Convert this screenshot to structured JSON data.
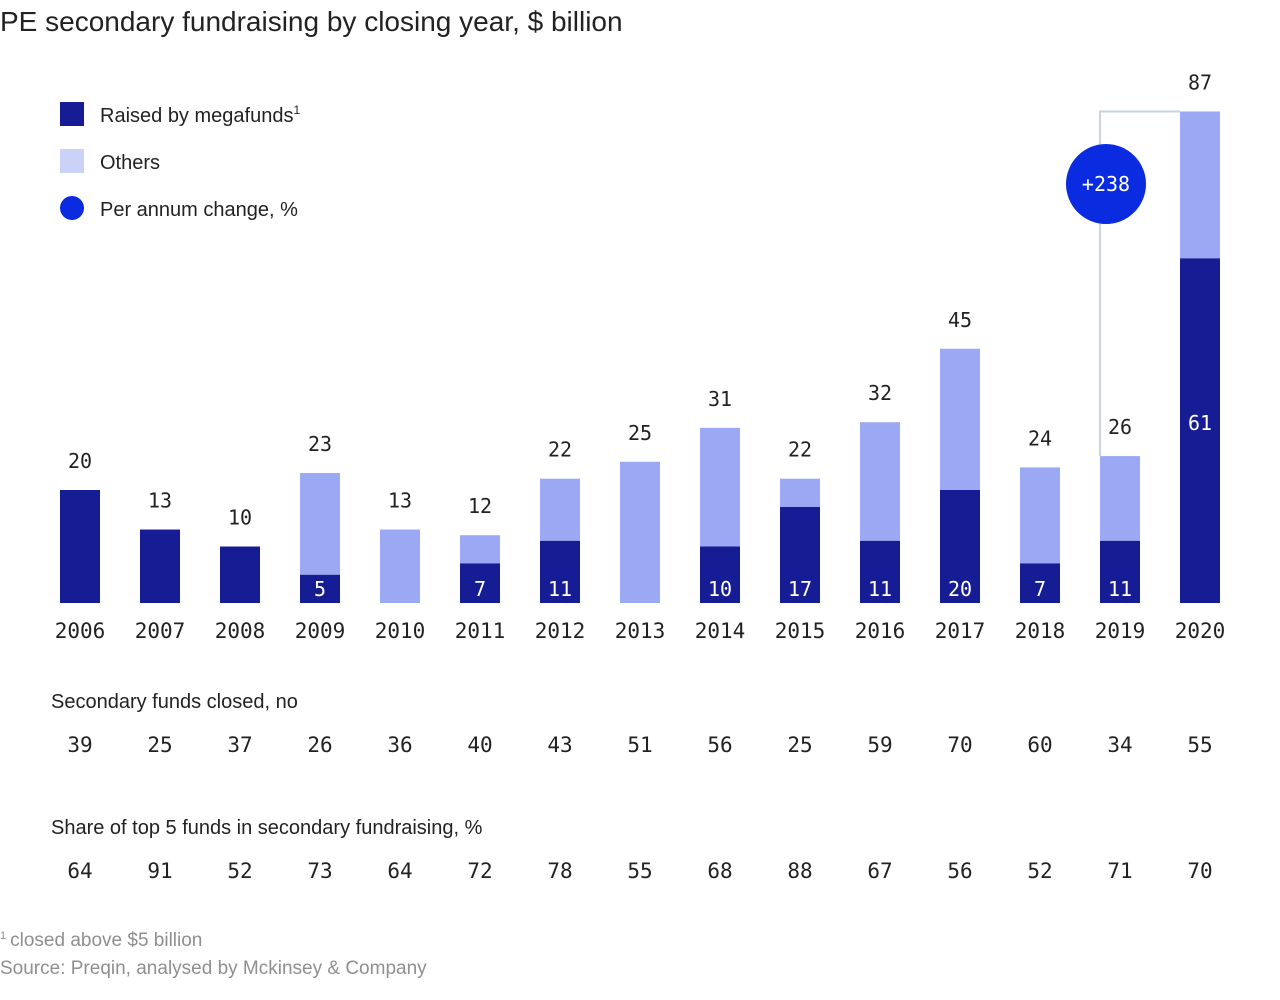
{
  "title": "PE secondary fundraising by closing year, $ billion",
  "legend": {
    "megafunds": "Raised by megafunds",
    "megafunds_sup": "1",
    "others": "Others",
    "change": "Per annum change, %"
  },
  "colors": {
    "megafunds": "#151c94",
    "others": "#9ba8f3",
    "others_legend": "#cbd2f8",
    "change": "#0a2be0",
    "bracket": "#c7d3e6",
    "text": "#222222",
    "footnote": "#8f8f8f"
  },
  "chart_data": {
    "type": "bar",
    "stacked": true,
    "title": "PE secondary fundraising by closing year, $ billion",
    "categories": [
      "2006",
      "2007",
      "2008",
      "2009",
      "2010",
      "2011",
      "2012",
      "2013",
      "2014",
      "2015",
      "2016",
      "2017",
      "2018",
      "2019",
      "2020"
    ],
    "series": [
      {
        "name": "Raised by megafunds",
        "values": [
          20,
          13,
          10,
          5,
          0,
          7,
          11,
          0,
          10,
          17,
          11,
          20,
          7,
          11,
          61
        ]
      },
      {
        "name": "Others",
        "values": [
          0,
          0,
          0,
          18,
          13,
          5,
          11,
          25,
          21,
          5,
          21,
          25,
          17,
          15,
          26
        ]
      }
    ],
    "totals": [
      20,
      13,
      10,
      23,
      13,
      12,
      22,
      25,
      31,
      22,
      32,
      45,
      24,
      26,
      87
    ],
    "megafund_labels": [
      "",
      "",
      "",
      "5",
      "",
      "7",
      "11",
      "",
      "10",
      "17",
      "11",
      "20",
      "7",
      "11",
      "61"
    ],
    "ylim": [
      0,
      90
    ],
    "annotation": {
      "label": "+238",
      "from": "2019",
      "to": "2020",
      "description": "Per annum change, %"
    },
    "grid": false
  },
  "table1": {
    "title": "Secondary funds closed, no",
    "values": [
      "39",
      "25",
      "37",
      "26",
      "36",
      "40",
      "43",
      "51",
      "56",
      "25",
      "59",
      "70",
      "60",
      "34",
      "55"
    ]
  },
  "table2": {
    "title": "Share of top 5 funds in secondary fundraising, %",
    "values": [
      "64",
      "91",
      "52",
      "73",
      "64",
      "72",
      "78",
      "55",
      "68",
      "88",
      "67",
      "56",
      "52",
      "71",
      "70"
    ]
  },
  "footnote": {
    "sup": "1",
    "note": "closed above $5 billion",
    "source": "Source: Preqin, analysed by Mckinsey & Company"
  }
}
